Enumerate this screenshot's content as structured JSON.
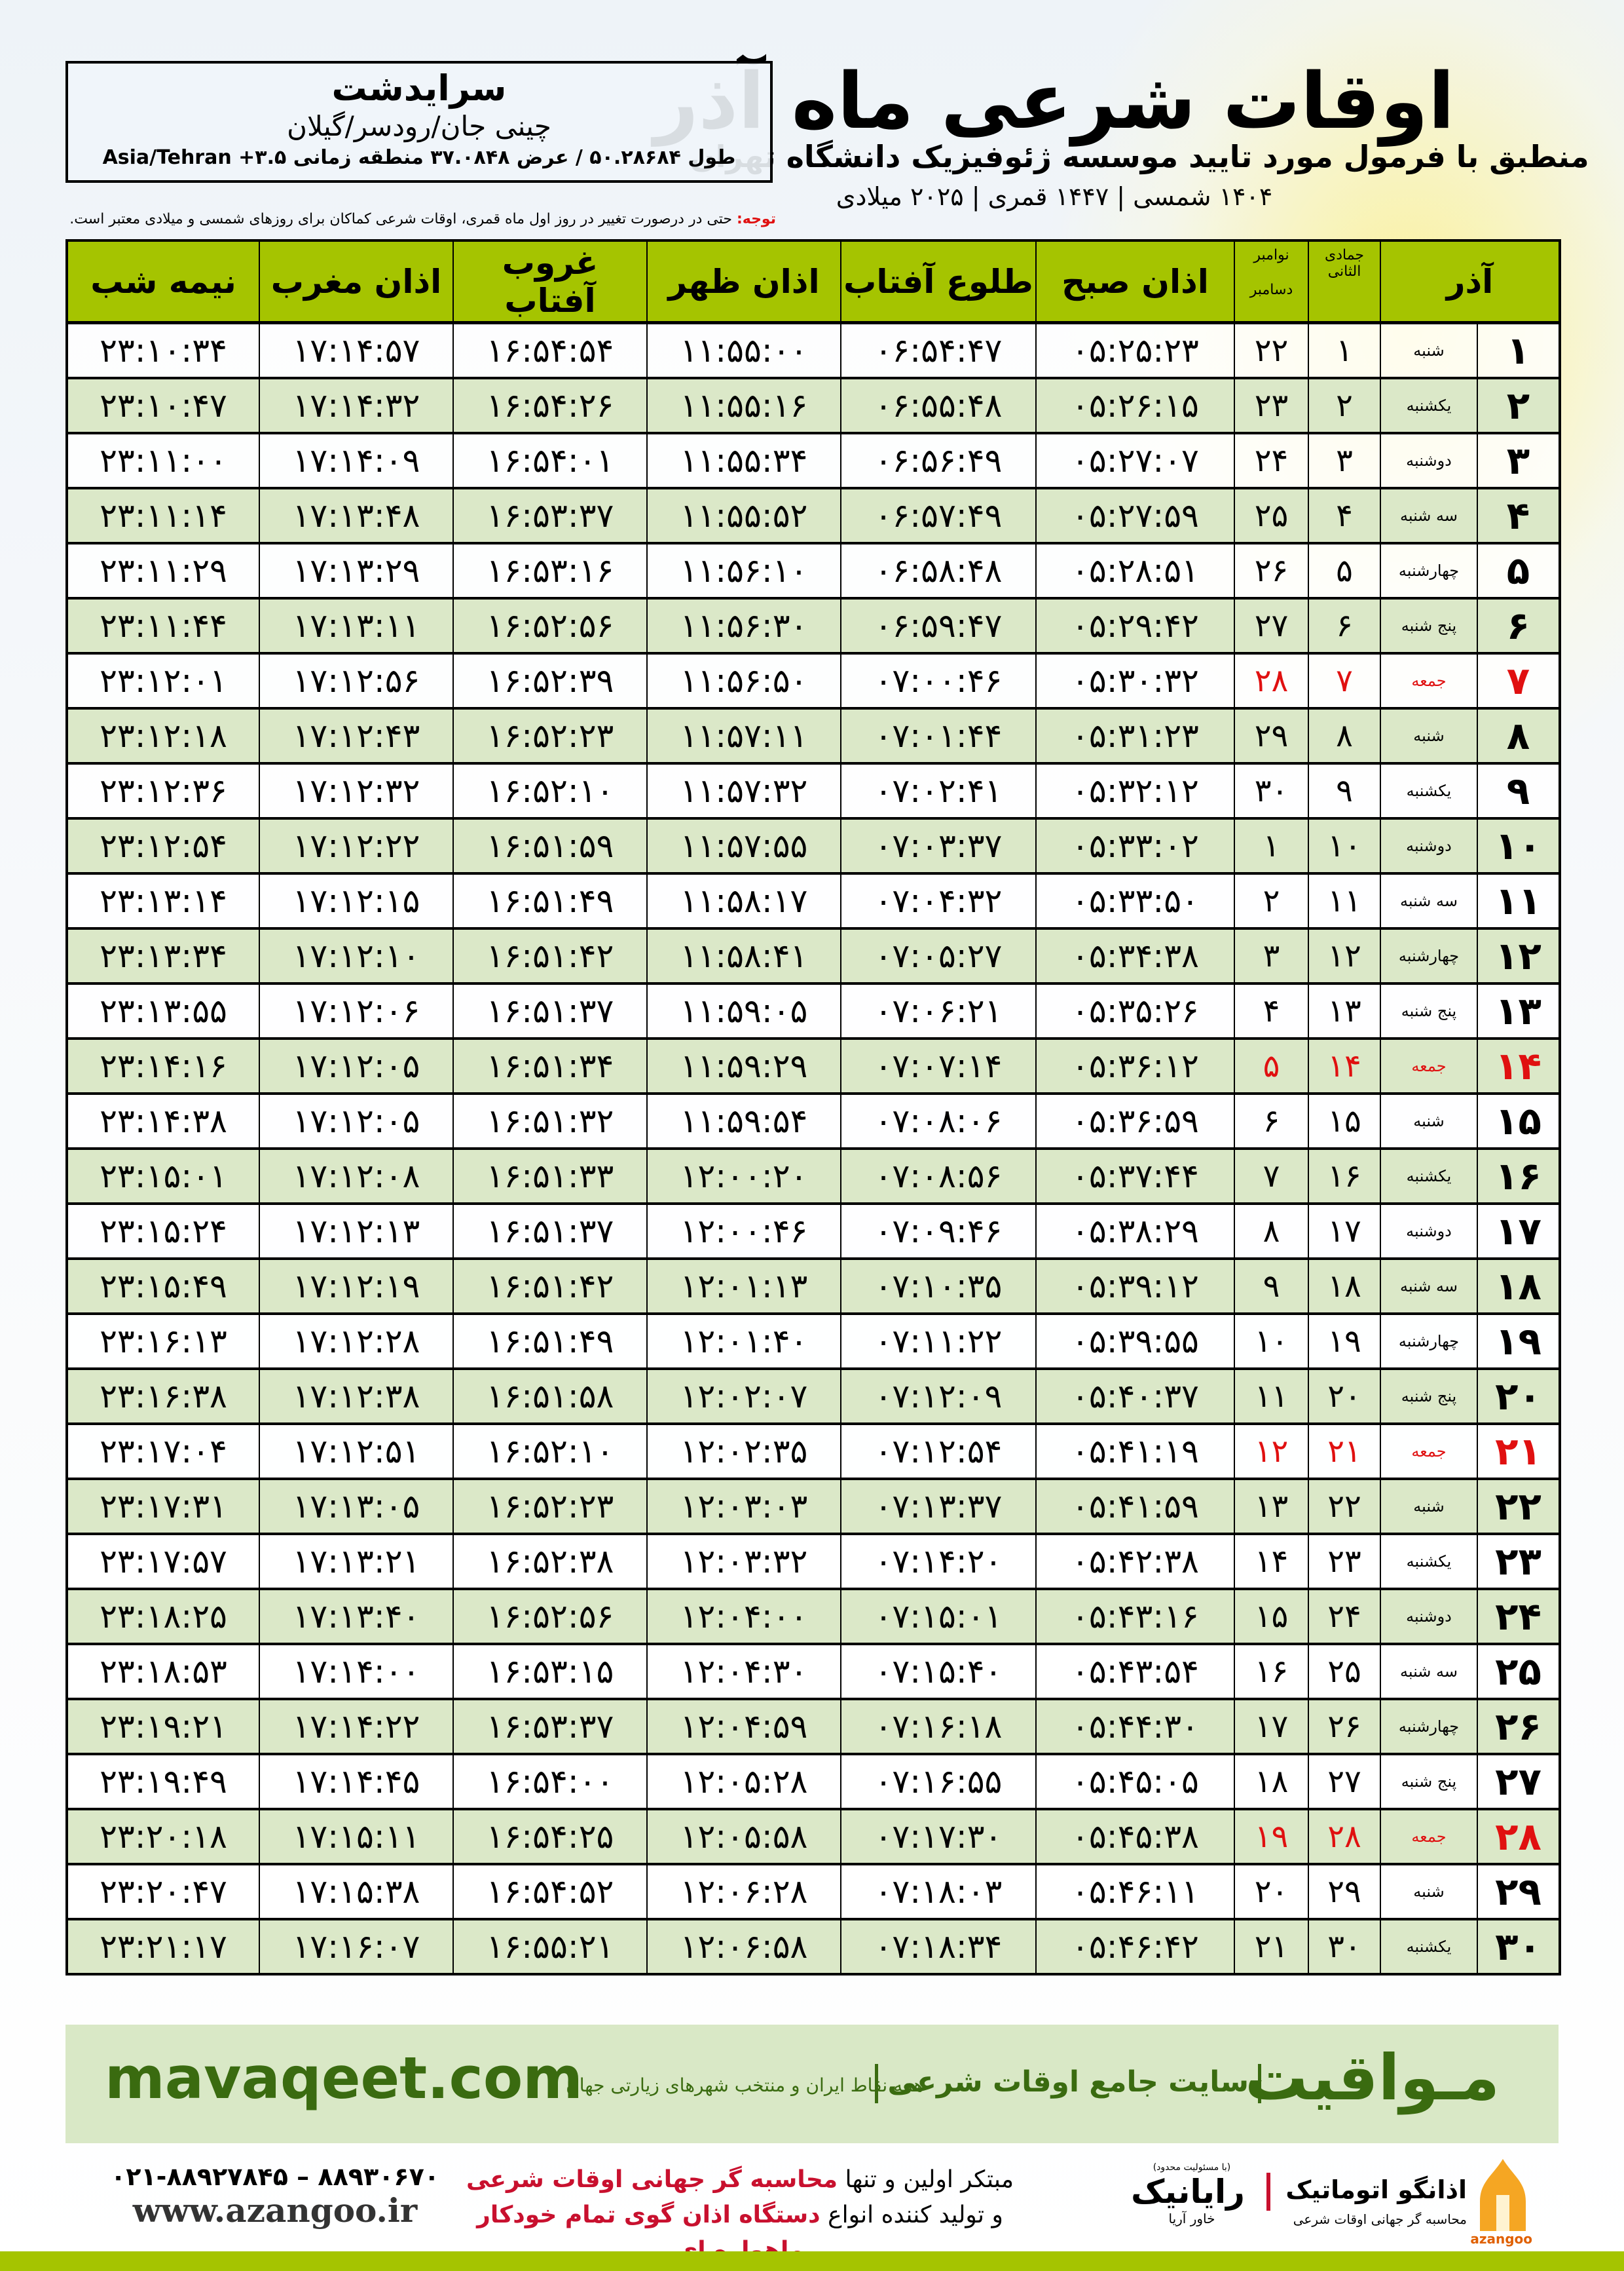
{
  "header": {
    "title": "اوقات شرعی ماه آذر",
    "subtitle": "منطبق با فرمول مورد تایید موسسه ژئوفیزیک دانشگاه تهران",
    "date_line": "۱۴۰۴ شمسی | ۱۴۴۷ قمری | ۲۰۲۵ میلادی"
  },
  "location": {
    "city": "سرایدشت",
    "region": "چینی جان/رودسر/گیلان",
    "coords": "طول ۵۰.۲۸۶۸۴ / عرض ۳۷.۰۸۴۸ منطقه زمانی ۳.۵+ Asia/Tehran"
  },
  "note": {
    "label": "توجه:",
    "text": " حتی در درصورت تغییر در روز اول ماه قمری، اوقات شرعی کماکان برای روزهای شمسی و میلادی معتبر است."
  },
  "table": {
    "headers": {
      "azar": "آذر",
      "hijri_month": "جمادی الثانی",
      "greg_month_1": "نوامبر",
      "greg_month_2": "دسامبر",
      "fajr": "اذان صبح",
      "sunrise": "طلوع آفتاب",
      "dhuhr": "اذان ظهر",
      "sunset": "غروب آفتاب",
      "maghrib": "اذان مغرب",
      "midnight": "نیمه شب"
    },
    "friday_color": "#e01010",
    "header_color": "#a5c400",
    "alt_row_color": "#dbe8c8",
    "rows": [
      [
        "۱",
        "شنبه",
        "۱",
        "۲۲",
        "۰۵:۲۵:۲۳",
        "۰۶:۵۴:۴۷",
        "۱۱:۵۵:۰۰",
        "۱۶:۵۴:۵۴",
        "۱۷:۱۴:۵۷",
        "۲۳:۱۰:۳۴"
      ],
      [
        "۲",
        "یکشنبه",
        "۲",
        "۲۳",
        "۰۵:۲۶:۱۵",
        "۰۶:۵۵:۴۸",
        "۱۱:۵۵:۱۶",
        "۱۶:۵۴:۲۶",
        "۱۷:۱۴:۳۲",
        "۲۳:۱۰:۴۷"
      ],
      [
        "۳",
        "دوشنبه",
        "۳",
        "۲۴",
        "۰۵:۲۷:۰۷",
        "۰۶:۵۶:۴۹",
        "۱۱:۵۵:۳۴",
        "۱۶:۵۴:۰۱",
        "۱۷:۱۴:۰۹",
        "۲۳:۱۱:۰۰"
      ],
      [
        "۴",
        "سه شنبه",
        "۴",
        "۲۵",
        "۰۵:۲۷:۵۹",
        "۰۶:۵۷:۴۹",
        "۱۱:۵۵:۵۲",
        "۱۶:۵۳:۳۷",
        "۱۷:۱۳:۴۸",
        "۲۳:۱۱:۱۴"
      ],
      [
        "۵",
        "چهارشنبه",
        "۵",
        "۲۶",
        "۰۵:۲۸:۵۱",
        "۰۶:۵۸:۴۸",
        "۱۱:۵۶:۱۰",
        "۱۶:۵۳:۱۶",
        "۱۷:۱۳:۲۹",
        "۲۳:۱۱:۲۹"
      ],
      [
        "۶",
        "پنج شنبه",
        "۶",
        "۲۷",
        "۰۵:۲۹:۴۲",
        "۰۶:۵۹:۴۷",
        "۱۱:۵۶:۳۰",
        "۱۶:۵۲:۵۶",
        "۱۷:۱۳:۱۱",
        "۲۳:۱۱:۴۴"
      ],
      [
        "۷",
        "جمعه",
        "۷",
        "۲۸",
        "۰۵:۳۰:۳۲",
        "۰۷:۰۰:۴۶",
        "۱۱:۵۶:۵۰",
        "۱۶:۵۲:۳۹",
        "۱۷:۱۲:۵۶",
        "۲۳:۱۲:۰۱"
      ],
      [
        "۸",
        "شنبه",
        "۸",
        "۲۹",
        "۰۵:۳۱:۲۳",
        "۰۷:۰۱:۴۴",
        "۱۱:۵۷:۱۱",
        "۱۶:۵۲:۲۳",
        "۱۷:۱۲:۴۳",
        "۲۳:۱۲:۱۸"
      ],
      [
        "۹",
        "یکشنبه",
        "۹",
        "۳۰",
        "۰۵:۳۲:۱۲",
        "۰۷:۰۲:۴۱",
        "۱۱:۵۷:۳۲",
        "۱۶:۵۲:۱۰",
        "۱۷:۱۲:۳۲",
        "۲۳:۱۲:۳۶"
      ],
      [
        "۱۰",
        "دوشنبه",
        "۱۰",
        "۱",
        "۰۵:۳۳:۰۲",
        "۰۷:۰۳:۳۷",
        "۱۱:۵۷:۵۵",
        "۱۶:۵۱:۵۹",
        "۱۷:۱۲:۲۲",
        "۲۳:۱۲:۵۴"
      ],
      [
        "۱۱",
        "سه شنبه",
        "۱۱",
        "۲",
        "۰۵:۳۳:۵۰",
        "۰۷:۰۴:۳۲",
        "۱۱:۵۸:۱۷",
        "۱۶:۵۱:۴۹",
        "۱۷:۱۲:۱۵",
        "۲۳:۱۳:۱۴"
      ],
      [
        "۱۲",
        "چهارشنبه",
        "۱۲",
        "۳",
        "۰۵:۳۴:۳۸",
        "۰۷:۰۵:۲۷",
        "۱۱:۵۸:۴۱",
        "۱۶:۵۱:۴۲",
        "۱۷:۱۲:۱۰",
        "۲۳:۱۳:۳۴"
      ],
      [
        "۱۳",
        "پنج شنبه",
        "۱۳",
        "۴",
        "۰۵:۳۵:۲۶",
        "۰۷:۰۶:۲۱",
        "۱۱:۵۹:۰۵",
        "۱۶:۵۱:۳۷",
        "۱۷:۱۲:۰۶",
        "۲۳:۱۳:۵۵"
      ],
      [
        "۱۴",
        "جمعه",
        "۱۴",
        "۵",
        "۰۵:۳۶:۱۲",
        "۰۷:۰۷:۱۴",
        "۱۱:۵۹:۲۹",
        "۱۶:۵۱:۳۴",
        "۱۷:۱۲:۰۵",
        "۲۳:۱۴:۱۶"
      ],
      [
        "۱۵",
        "شنبه",
        "۱۵",
        "۶",
        "۰۵:۳۶:۵۹",
        "۰۷:۰۸:۰۶",
        "۱۱:۵۹:۵۴",
        "۱۶:۵۱:۳۲",
        "۱۷:۱۲:۰۵",
        "۲۳:۱۴:۳۸"
      ],
      [
        "۱۶",
        "یکشنبه",
        "۱۶",
        "۷",
        "۰۵:۳۷:۴۴",
        "۰۷:۰۸:۵۶",
        "۱۲:۰۰:۲۰",
        "۱۶:۵۱:۳۳",
        "۱۷:۱۲:۰۸",
        "۲۳:۱۵:۰۱"
      ],
      [
        "۱۷",
        "دوشنبه",
        "۱۷",
        "۸",
        "۰۵:۳۸:۲۹",
        "۰۷:۰۹:۴۶",
        "۱۲:۰۰:۴۶",
        "۱۶:۵۱:۳۷",
        "۱۷:۱۲:۱۳",
        "۲۳:۱۵:۲۴"
      ],
      [
        "۱۸",
        "سه شنبه",
        "۱۸",
        "۹",
        "۰۵:۳۹:۱۲",
        "۰۷:۱۰:۳۵",
        "۱۲:۰۱:۱۳",
        "۱۶:۵۱:۴۲",
        "۱۷:۱۲:۱۹",
        "۲۳:۱۵:۴۹"
      ],
      [
        "۱۹",
        "چهارشنبه",
        "۱۹",
        "۱۰",
        "۰۵:۳۹:۵۵",
        "۰۷:۱۱:۲۲",
        "۱۲:۰۱:۴۰",
        "۱۶:۵۱:۴۹",
        "۱۷:۱۲:۲۸",
        "۲۳:۱۶:۱۳"
      ],
      [
        "۲۰",
        "پنج شنبه",
        "۲۰",
        "۱۱",
        "۰۵:۴۰:۳۷",
        "۰۷:۱۲:۰۹",
        "۱۲:۰۲:۰۷",
        "۱۶:۵۱:۵۸",
        "۱۷:۱۲:۳۸",
        "۲۳:۱۶:۳۸"
      ],
      [
        "۲۱",
        "جمعه",
        "۲۱",
        "۱۲",
        "۰۵:۴۱:۱۹",
        "۰۷:۱۲:۵۴",
        "۱۲:۰۲:۳۵",
        "۱۶:۵۲:۱۰",
        "۱۷:۱۲:۵۱",
        "۲۳:۱۷:۰۴"
      ],
      [
        "۲۲",
        "شنبه",
        "۲۲",
        "۱۳",
        "۰۵:۴۱:۵۹",
        "۰۷:۱۳:۳۷",
        "۱۲:۰۳:۰۳",
        "۱۶:۵۲:۲۳",
        "۱۷:۱۳:۰۵",
        "۲۳:۱۷:۳۱"
      ],
      [
        "۲۳",
        "یکشنبه",
        "۲۳",
        "۱۴",
        "۰۵:۴۲:۳۸",
        "۰۷:۱۴:۲۰",
        "۱۲:۰۳:۳۲",
        "۱۶:۵۲:۳۸",
        "۱۷:۱۳:۲۱",
        "۲۳:۱۷:۵۷"
      ],
      [
        "۲۴",
        "دوشنبه",
        "۲۴",
        "۱۵",
        "۰۵:۴۳:۱۶",
        "۰۷:۱۵:۰۱",
        "۱۲:۰۴:۰۰",
        "۱۶:۵۲:۵۶",
        "۱۷:۱۳:۴۰",
        "۲۳:۱۸:۲۵"
      ],
      [
        "۲۵",
        "سه شنبه",
        "۲۵",
        "۱۶",
        "۰۵:۴۳:۵۴",
        "۰۷:۱۵:۴۰",
        "۱۲:۰۴:۳۰",
        "۱۶:۵۳:۱۵",
        "۱۷:۱۴:۰۰",
        "۲۳:۱۸:۵۳"
      ],
      [
        "۲۶",
        "چهارشنبه",
        "۲۶",
        "۱۷",
        "۰۵:۴۴:۳۰",
        "۰۷:۱۶:۱۸",
        "۱۲:۰۴:۵۹",
        "۱۶:۵۳:۳۷",
        "۱۷:۱۴:۲۲",
        "۲۳:۱۹:۲۱"
      ],
      [
        "۲۷",
        "پنج شنبه",
        "۲۷",
        "۱۸",
        "۰۵:۴۵:۰۵",
        "۰۷:۱۶:۵۵",
        "۱۲:۰۵:۲۸",
        "۱۶:۵۴:۰۰",
        "۱۷:۱۴:۴۵",
        "۲۳:۱۹:۴۹"
      ],
      [
        "۲۸",
        "جمعه",
        "۲۸",
        "۱۹",
        "۰۵:۴۵:۳۸",
        "۰۷:۱۷:۳۰",
        "۱۲:۰۵:۵۸",
        "۱۶:۵۴:۲۵",
        "۱۷:۱۵:۱۱",
        "۲۳:۲۰:۱۸"
      ],
      [
        "۲۹",
        "شنبه",
        "۲۹",
        "۲۰",
        "۰۵:۴۶:۱۱",
        "۰۷:۱۸:۰۳",
        "۱۲:۰۶:۲۸",
        "۱۶:۵۴:۵۲",
        "۱۷:۱۵:۳۸",
        "۲۳:۲۰:۴۷"
      ],
      [
        "۳۰",
        "یکشنبه",
        "۳۰",
        "۲۱",
        "۰۵:۴۶:۴۲",
        "۰۷:۱۸:۳۴",
        "۱۲:۰۶:۵۸",
        "۱۶:۵۵:۲۱",
        "۱۷:۱۶:۰۷",
        "۲۳:۲۱:۱۷"
      ]
    ]
  },
  "footer": {
    "brand": "مـواقیت",
    "tagline": "سایت جامع اوقات شرعی",
    "tagline2": "همه نقاط ایران و منتخب شهرهای زیارتی جهان",
    "url": "mavaqeet.com",
    "promo_1_black": "مبتکر اولین و تنها ",
    "promo_1_red": "محاسبه گر جهانی اوقات شرعی",
    "promo_2_black": "و تولید کننده انواع ",
    "promo_2_red": "دستگاه اذان گوی تمام خودکار ماهواره ای",
    "phone": "۰۲۱-۸۸۹۲۷۸۴۵ – ۸۸۹۳۰۶۷۰",
    "website": "www.azangoo.ir",
    "rayanik_note": "(با مسئولیت محدود)",
    "rayanik_name": "رایانیک",
    "rayanik_sub": "خاور آریا",
    "azangoo_name": "اذانگو اتوماتیک",
    "azangoo_sub": "محاسبه گر جهانی اوقات شرعی",
    "azangoo_latin": "azangoo",
    "brand_color": "#3a6b10",
    "accent_red": "#c8102e"
  }
}
